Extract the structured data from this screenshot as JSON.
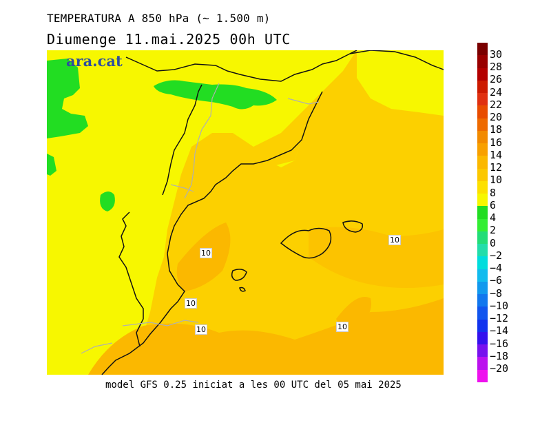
{
  "header": {
    "title": "TEMPERATURA A 850 hPa (~ 1.500 m)",
    "subtitle": "Diumenge  11.mai.2025 00h UTC"
  },
  "logo": {
    "text": "ara.cat"
  },
  "footer": {
    "text": "model GFS 0.25 iniciat a les 00 UTC del 05 mai 2025"
  },
  "map": {
    "contour_labels": [
      "10",
      "10",
      "10",
      "10",
      "10"
    ]
  },
  "colorbar": {
    "labels": [
      "30",
      "28",
      "26",
      "24",
      "22",
      "20",
      "18",
      "16",
      "14",
      "12",
      "10",
      "8",
      "6",
      "4",
      "2",
      "0",
      "−2",
      "−4",
      "−6",
      "−8",
      "−10",
      "−12",
      "−14",
      "−16",
      "−18",
      "−20"
    ],
    "colors": [
      "#7a0000",
      "#990000",
      "#b30000",
      "#cc1a00",
      "#e03010",
      "#e84c00",
      "#ee6a00",
      "#f28a00",
      "#f8a000",
      "#fbb800",
      "#fcc800",
      "#fde000",
      "#f7f700",
      "#22dd22",
      "#33ee33",
      "#22dd77",
      "#22ddaa",
      "#00dddd",
      "#11bbee",
      "#1199ee",
      "#1177ee",
      "#1155ee",
      "#1133ee",
      "#3311ee",
      "#7711ee",
      "#bb11ee",
      "#ee11ee"
    ]
  }
}
